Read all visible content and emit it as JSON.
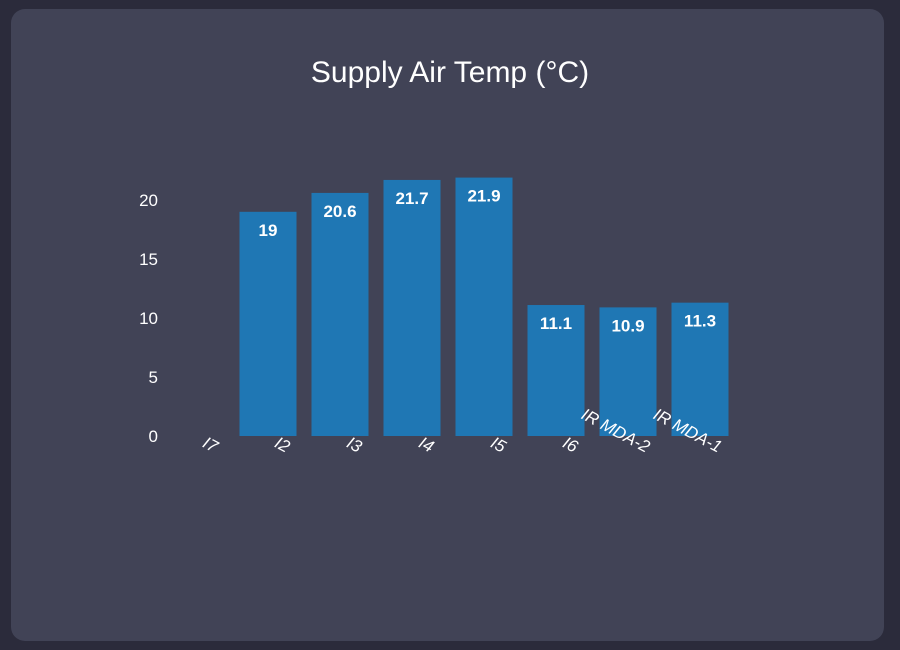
{
  "chart_data": {
    "type": "bar",
    "title": "Supply Air Temp (°C)",
    "xlabel": "",
    "ylabel": "",
    "categories": [
      "I7",
      "I2",
      "I3",
      "I4",
      "I5",
      "I6",
      "IR MDA-2",
      "IR MDA-1"
    ],
    "values": [
      null,
      19,
      20.6,
      21.7,
      21.9,
      11.1,
      10.9,
      11.3
    ],
    "data_labels": [
      "",
      "19",
      "20.6",
      "21.7",
      "21.9",
      "11.1",
      "10.9",
      "11.3"
    ],
    "yticks": [
      "0",
      "5",
      "10",
      "15",
      "20"
    ],
    "ylim": [
      0,
      22
    ],
    "grid": false,
    "legend": "none",
    "colors": {
      "bar": "#1f77b4",
      "background": "#414356",
      "text": "#ffffff"
    }
  }
}
